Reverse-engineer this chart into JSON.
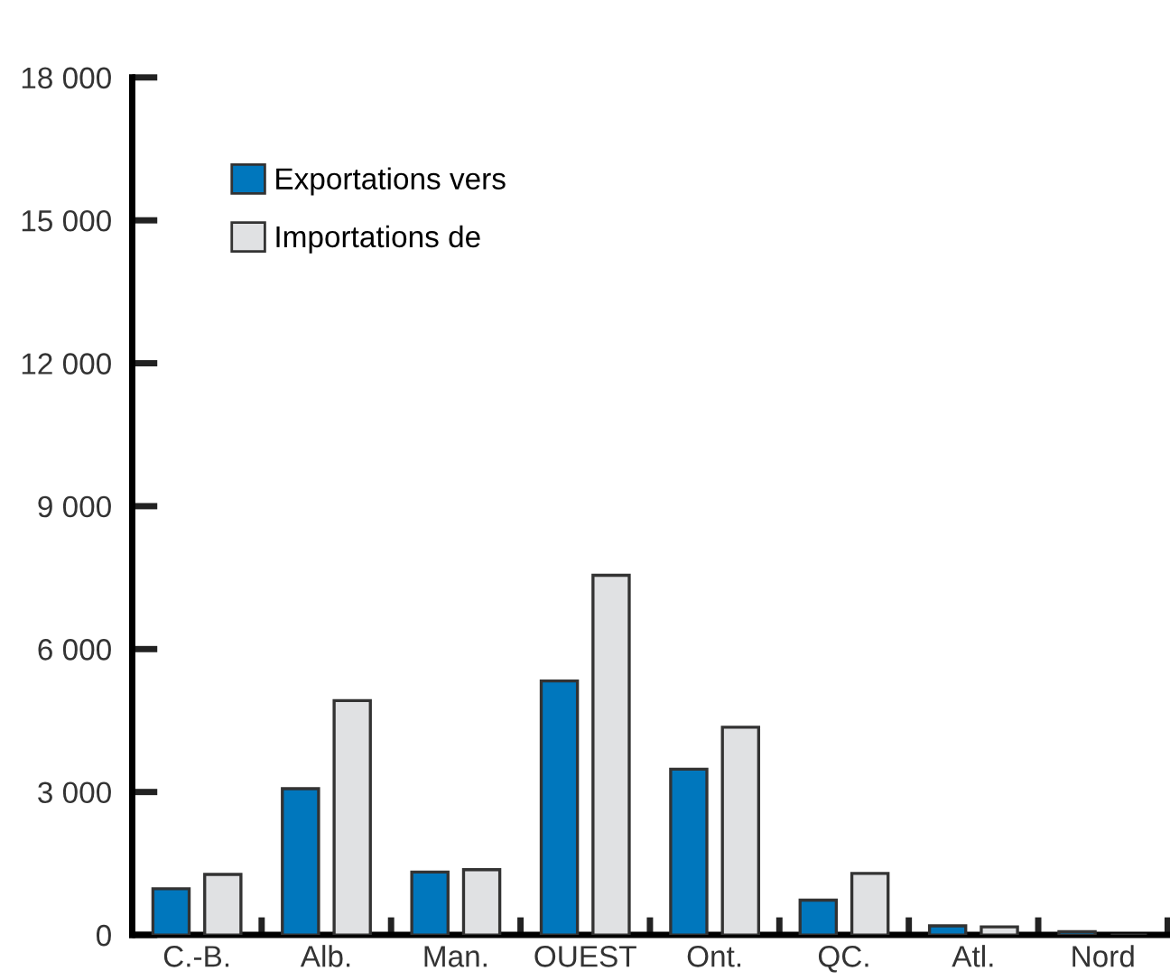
{
  "chart_data": {
    "type": "bar",
    "categories": [
      "C.-B.",
      "Alb.",
      "Man.",
      "OUEST",
      "Ont.",
      "QC.",
      "Atl.",
      "Nord"
    ],
    "series": [
      {
        "name": "Exportations vers",
        "color": "#0077bd",
        "values": [
          970,
          3070,
          1320,
          5330,
          3480,
          730,
          190,
          70
        ]
      },
      {
        "name": "Importations de",
        "color": "#e0e1e3",
        "values": [
          1270,
          4920,
          1370,
          7550,
          4360,
          1290,
          170,
          null
        ]
      }
    ],
    "ylim": [
      0,
      18000
    ],
    "yticks": [
      {
        "value": 0,
        "label": "0"
      },
      {
        "value": 3000,
        "label": "3 000"
      },
      {
        "value": 6000,
        "label": "6 000"
      },
      {
        "value": 9000,
        "label": "9 000"
      },
      {
        "value": 12000,
        "label": "12 000"
      },
      {
        "value": 15000,
        "label": "15 000"
      },
      {
        "value": 18000,
        "label": "18 000"
      }
    ],
    "grid": false,
    "legend": "top left"
  }
}
